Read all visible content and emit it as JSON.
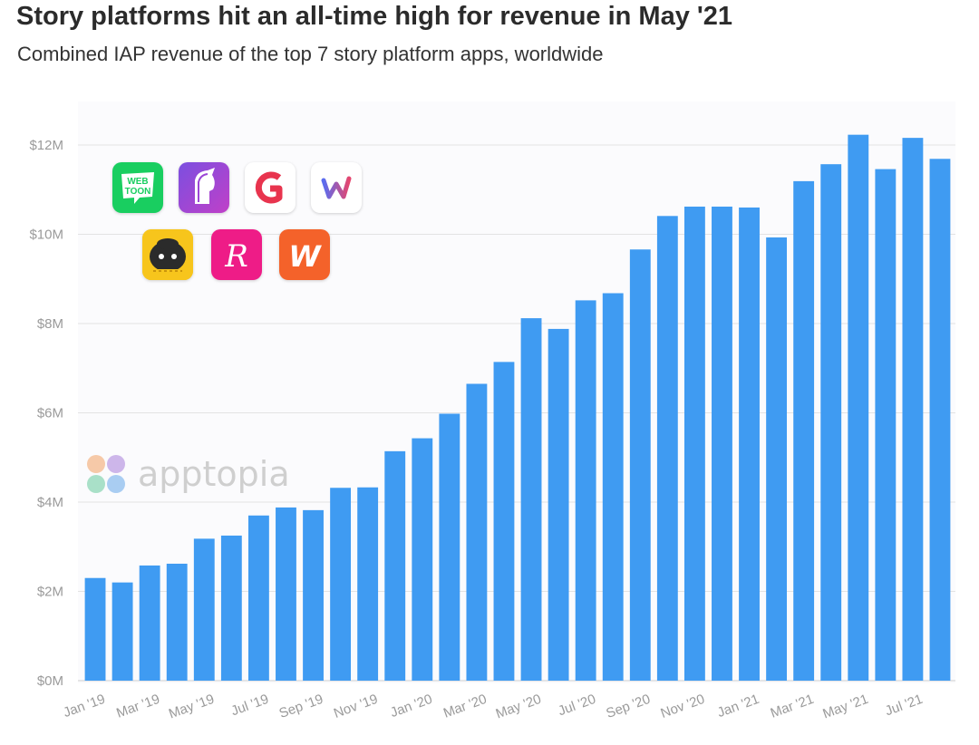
{
  "title": "Story platforms hit an all-time high for revenue in May '21",
  "subtitle": "Combined IAP revenue of the top 7 story platform apps, worldwide",
  "watermark": "apptopia",
  "colors": {
    "bar": "#3f9bf2",
    "grid": "#e3e3e3",
    "axis_text": "#9a9a9a"
  },
  "app_icons": [
    {
      "name": "webtoon-icon",
      "label": "WEB TOON",
      "bg": "#19ce60"
    },
    {
      "name": "unicorn-app-icon",
      "bg": "#9b45d6"
    },
    {
      "name": "g-letter-app-icon",
      "label": "G",
      "bg": "#ffffff"
    },
    {
      "name": "w-letter-app-icon",
      "label": "W",
      "bg": "#ffffff"
    },
    {
      "name": "mascot-app-icon",
      "bg": "#f7c51c"
    },
    {
      "name": "r-letter-app-icon",
      "label": "R",
      "bg": "#ee1c87"
    },
    {
      "name": "wattpad-icon",
      "label": "W",
      "bg": "#f4622a"
    }
  ],
  "chart_data": {
    "type": "bar",
    "title": "Story platforms hit an all-time high for revenue in May '21",
    "subtitle": "Combined IAP revenue of the top 7 story platform apps, worldwide",
    "xlabel": "",
    "ylabel": "",
    "unit": "$M",
    "ylim": [
      0,
      13
    ],
    "yticks": [
      0,
      2,
      4,
      6,
      8,
      10,
      12
    ],
    "ytick_labels": [
      "$0M",
      "$2M",
      "$4M",
      "$6M",
      "$8M",
      "$10M",
      "$12M"
    ],
    "grid": true,
    "categories": [
      "Jan '19",
      "Feb '19",
      "Mar '19",
      "Apr '19",
      "May '19",
      "Jun '19",
      "Jul '19",
      "Aug '19",
      "Sep '19",
      "Oct '19",
      "Nov '19",
      "Dec '19",
      "Jan '20",
      "Feb '20",
      "Mar '20",
      "Apr '20",
      "May '20",
      "Jun '20",
      "Jul '20",
      "Aug '20",
      "Sep '20",
      "Oct '20",
      "Nov '20",
      "Dec '20",
      "Jan '21",
      "Feb '21",
      "Mar '21",
      "Apr '21",
      "May '21",
      "Jun '21",
      "Jul '21",
      "Aug '21"
    ],
    "values": [
      2.3,
      2.2,
      2.58,
      2.62,
      3.18,
      3.25,
      3.7,
      3.88,
      3.82,
      4.32,
      4.33,
      5.14,
      5.43,
      5.98,
      6.65,
      7.14,
      8.12,
      7.88,
      8.52,
      8.68,
      9.66,
      10.41,
      10.62,
      10.62,
      10.6,
      9.93,
      11.19,
      11.57,
      12.23,
      11.46,
      12.16,
      11.69
    ],
    "xtick_labels": [
      "Jan '19",
      "Mar '19",
      "May '19",
      "Jul '19",
      "Sep '19",
      "Nov '19",
      "Jan '20",
      "Mar '20",
      "May '20",
      "Jul '20",
      "Sep '20",
      "Nov '20",
      "Jan '21",
      "Mar '21",
      "May '21",
      "Jul '21"
    ],
    "xtick_indices": [
      0,
      2,
      4,
      6,
      8,
      10,
      12,
      14,
      16,
      18,
      20,
      22,
      24,
      26,
      28,
      30
    ]
  }
}
